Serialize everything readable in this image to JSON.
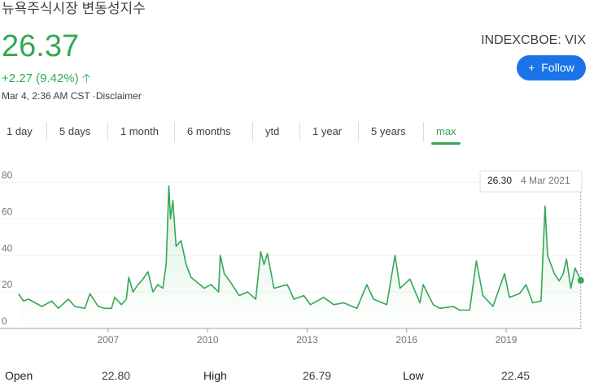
{
  "header": {
    "title": "뉴욕주식시장 변동성지수",
    "price": "26.37",
    "change": "+2.27 (9.42%)",
    "timestamp": "Mar 4, 2:36 AM CST ·",
    "disclaimer": "Disclaimer",
    "ticker": "INDEXCBOE: VIX",
    "follow": "Follow"
  },
  "tabs": [
    "1 day",
    "5 days",
    "1 month",
    "6 months",
    "ytd",
    "1 year",
    "5 years",
    "max"
  ],
  "selected_tab": 7,
  "chart_data": {
    "type": "line",
    "color": "#34a853",
    "grid": true,
    "x": [
      2004.3,
      2004.45,
      2004.6,
      2004.8,
      2005.0,
      2005.3,
      2005.5,
      2005.8,
      2006.0,
      2006.3,
      2006.45,
      2006.7,
      2006.9,
      2007.1,
      2007.2,
      2007.4,
      2007.55,
      2007.62,
      2007.75,
      2007.9,
      2008.05,
      2008.2,
      2008.35,
      2008.5,
      2008.65,
      2008.75,
      2008.83,
      2008.88,
      2008.95,
      2009.05,
      2009.2,
      2009.35,
      2009.5,
      2009.7,
      2009.9,
      2010.1,
      2010.33,
      2010.38,
      2010.5,
      2010.7,
      2010.95,
      2011.2,
      2011.45,
      2011.6,
      2011.7,
      2011.8,
      2012.0,
      2012.4,
      2012.6,
      2012.9,
      2013.1,
      2013.5,
      2013.8,
      2014.1,
      2014.5,
      2014.8,
      2015.0,
      2015.4,
      2015.65,
      2015.8,
      2016.1,
      2016.4,
      2016.5,
      2016.8,
      2017.0,
      2017.4,
      2017.6,
      2017.9,
      2018.1,
      2018.3,
      2018.6,
      2018.95,
      2019.1,
      2019.4,
      2019.6,
      2019.8,
      2020.05,
      2020.17,
      2020.25,
      2020.45,
      2020.6,
      2020.72,
      2020.82,
      2020.95,
      2021.08,
      2021.25
    ],
    "values": [
      19,
      15,
      16,
      14,
      12,
      15,
      11,
      16,
      12,
      11,
      19,
      12,
      11,
      11,
      17,
      13,
      16,
      28,
      20,
      24,
      27,
      31,
      20,
      24,
      22,
      35,
      78,
      60,
      70,
      45,
      48,
      35,
      28,
      25,
      22,
      24,
      20,
      40,
      30,
      25,
      18,
      20,
      16,
      42,
      35,
      41,
      22,
      24,
      16,
      18,
      13,
      17,
      13,
      14,
      11,
      24,
      16,
      13,
      40,
      22,
      27,
      14,
      24,
      13,
      11,
      12,
      10,
      10,
      37,
      18,
      12,
      30,
      17,
      19,
      24,
      14,
      15,
      67,
      40,
      30,
      26,
      30,
      38,
      22,
      33,
      26.3
    ],
    "xlim": [
      2004.28,
      2021.28
    ],
    "xticks": [
      2007,
      2010,
      2013,
      2016,
      2019
    ],
    "ylim": [
      0,
      89
    ],
    "yticks": [
      0,
      20,
      40,
      60,
      80
    ],
    "tooltip": {
      "value": "26.30",
      "date": "4 Mar 2021"
    }
  },
  "stats": [
    {
      "label": "Open",
      "value": "22.80"
    },
    {
      "label": "High",
      "value": "26.79"
    },
    {
      "label": "Low",
      "value": "22.45"
    }
  ]
}
